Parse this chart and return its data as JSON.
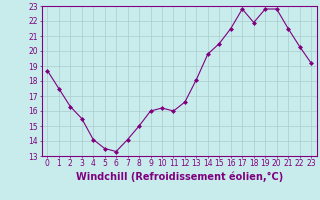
{
  "x": [
    0,
    1,
    2,
    3,
    4,
    5,
    6,
    7,
    8,
    9,
    10,
    11,
    12,
    13,
    14,
    15,
    16,
    17,
    18,
    19,
    20,
    21,
    22,
    23
  ],
  "y": [
    18.7,
    17.5,
    16.3,
    15.5,
    14.1,
    13.5,
    13.3,
    14.1,
    15.0,
    16.0,
    16.2,
    16.0,
    16.6,
    18.1,
    19.8,
    20.5,
    21.5,
    22.8,
    21.9,
    22.8,
    22.8,
    21.5,
    20.3,
    19.2
  ],
  "line_color": "#800080",
  "marker": "D",
  "marker_size": 2,
  "bg_color": "#c8ecec",
  "grid_color": "#aacccc",
  "xlabel": "Windchill (Refroidissement éolien,°C)",
  "ylim": [
    13,
    23
  ],
  "xlim_min": -0.5,
  "xlim_max": 23.5,
  "yticks": [
    13,
    14,
    15,
    16,
    17,
    18,
    19,
    20,
    21,
    22,
    23
  ],
  "xticks": [
    0,
    1,
    2,
    3,
    4,
    5,
    6,
    7,
    8,
    9,
    10,
    11,
    12,
    13,
    14,
    15,
    16,
    17,
    18,
    19,
    20,
    21,
    22,
    23
  ],
  "tick_label_fontsize": 5.5,
  "xlabel_fontsize": 7
}
